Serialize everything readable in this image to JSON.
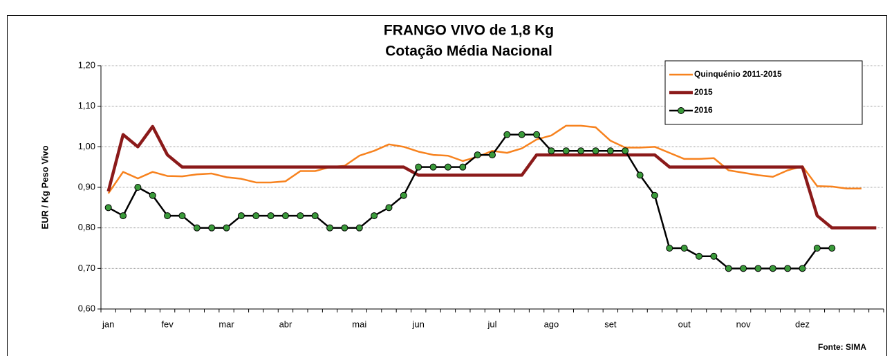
{
  "chart_data": {
    "type": "line",
    "title": "FRANGO VIVO de 1,8 Kg",
    "subtitle": "Cotação Média Nacional",
    "y_label": "EUR / Kg Peso Vivo",
    "source": "Fonte: SIMA",
    "categories": [
      "jan",
      null,
      null,
      null,
      "fev",
      null,
      null,
      null,
      "mar",
      null,
      null,
      null,
      "abr",
      null,
      null,
      null,
      null,
      "mai",
      null,
      null,
      null,
      "jun",
      null,
      null,
      null,
      null,
      "jul",
      null,
      null,
      null,
      "ago",
      null,
      null,
      null,
      "set",
      null,
      null,
      null,
      null,
      "out",
      null,
      null,
      null,
      "nov",
      null,
      null,
      null,
      "dez",
      null,
      null,
      null,
      null,
      null
    ],
    "ylim": [
      0.6,
      1.2
    ],
    "yticks": [
      {
        "value": 0.6,
        "label": "0,60"
      },
      {
        "value": 0.7,
        "label": "0,70"
      },
      {
        "value": 0.8,
        "label": "0,80"
      },
      {
        "value": 0.9,
        "label": "0,90"
      },
      {
        "value": 1.0,
        "label": "1,00"
      },
      {
        "value": 1.1,
        "label": "1,10"
      },
      {
        "value": 1.2,
        "label": "1,20"
      }
    ],
    "grid": true,
    "legend": "top-right",
    "series": [
      {
        "name": "Quinquénio 2011-2015",
        "color": "#f7821e",
        "width": 2.5,
        "marker": false,
        "values": [
          0.885,
          0.938,
          0.922,
          0.938,
          0.928,
          0.927,
          0.932,
          0.934,
          0.925,
          0.921,
          0.912,
          0.912,
          0.915,
          0.94,
          0.94,
          0.95,
          0.953,
          0.978,
          0.99,
          1.006,
          1.0,
          0.988,
          0.98,
          0.978,
          0.965,
          0.975,
          0.99,
          0.985,
          0.996,
          1.018,
          1.028,
          1.052,
          1.052,
          1.048,
          1.015,
          0.998,
          0.998,
          1.0,
          0.985,
          0.97,
          0.97,
          0.972,
          0.942,
          0.936,
          0.93,
          0.926,
          0.942,
          0.952,
          0.903,
          0.902,
          0.897,
          0.897,
          null
        ]
      },
      {
        "name": "2015",
        "color": "#8b1a1a",
        "width": 4.5,
        "marker": false,
        "values": [
          0.89,
          1.03,
          1.0,
          1.05,
          0.98,
          0.95,
          0.95,
          0.95,
          0.95,
          0.95,
          0.95,
          0.95,
          0.95,
          0.95,
          0.95,
          0.95,
          0.95,
          0.95,
          0.95,
          0.95,
          0.95,
          0.93,
          0.93,
          0.93,
          0.93,
          0.93,
          0.93,
          0.93,
          0.93,
          0.98,
          0.98,
          0.98,
          0.98,
          0.98,
          0.98,
          0.98,
          0.98,
          0.98,
          0.95,
          0.95,
          0.95,
          0.95,
          0.95,
          0.95,
          0.95,
          0.95,
          0.95,
          0.95,
          0.83,
          0.8,
          0.8,
          0.8,
          0.8
        ]
      },
      {
        "name": "2016",
        "color": "#000000",
        "marker_color": "#3a9a3a",
        "width": 2.5,
        "marker": true,
        "values": [
          0.85,
          0.83,
          0.9,
          0.88,
          0.83,
          0.83,
          0.8,
          0.8,
          0.8,
          0.83,
          0.83,
          0.83,
          0.83,
          0.83,
          0.83,
          0.8,
          0.8,
          0.8,
          0.83,
          0.85,
          0.88,
          0.95,
          0.95,
          0.95,
          0.95,
          0.98,
          0.98,
          1.03,
          1.03,
          1.03,
          0.99,
          0.99,
          0.99,
          0.99,
          0.99,
          0.99,
          0.93,
          0.88,
          0.75,
          0.75,
          0.73,
          0.73,
          0.7,
          0.7,
          0.7,
          0.7,
          0.7,
          0.7,
          0.75,
          0.75,
          null,
          null,
          null
        ]
      }
    ]
  }
}
